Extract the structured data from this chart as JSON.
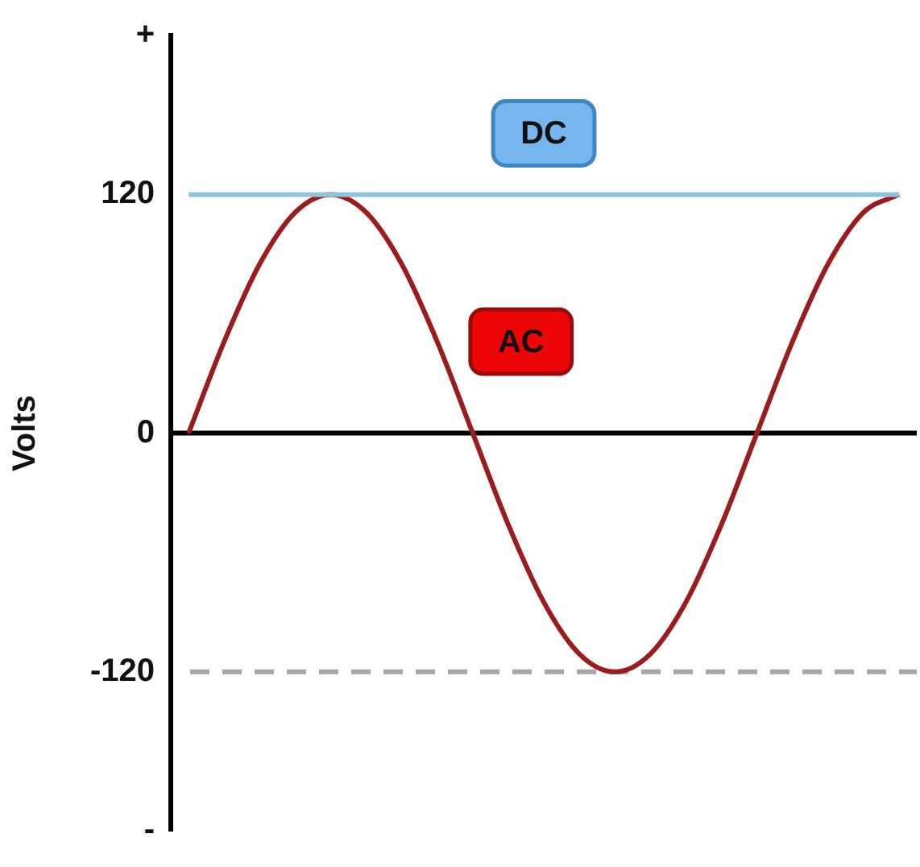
{
  "chart_data": {
    "type": "line",
    "ylabel": "Volts",
    "categories": [
      null,
      null,
      null,
      null,
      null,
      null,
      null,
      null,
      null,
      null,
      null,
      null,
      null,
      null,
      null,
      null,
      null,
      null,
      null,
      null,
      null
    ],
    "ylim": [
      -200,
      200
    ],
    "yticks": [
      {
        "value": 200,
        "label": "+"
      },
      120,
      0,
      -120,
      {
        "value": -200,
        "label": "-"
      }
    ],
    "series": [
      {
        "name": "DC",
        "color": "#8ec5dc",
        "values": [
          120,
          120,
          120,
          120,
          120,
          120,
          120,
          120,
          120,
          120,
          120,
          120,
          120,
          120,
          120,
          120,
          120,
          120,
          120,
          120,
          120
        ]
      },
      {
        "name": "AC",
        "color": "#9b1c1c",
        "values": [
          0,
          46,
          85,
          111,
          120,
          111,
          85,
          46,
          0,
          -46,
          -85,
          -111,
          -120,
          -111,
          -85,
          -46,
          0,
          46,
          85,
          111,
          120
        ]
      }
    ],
    "ref_lines": [
      {
        "axis": "y",
        "value": 0,
        "color": "#000000",
        "line_style": "solid"
      },
      {
        "axis": "y",
        "value": -120,
        "color": "#a6a6a6",
        "line_style": "dashed"
      }
    ],
    "grid": false,
    "legend": false,
    "marker": "none",
    "line_style": "solid"
  }
}
